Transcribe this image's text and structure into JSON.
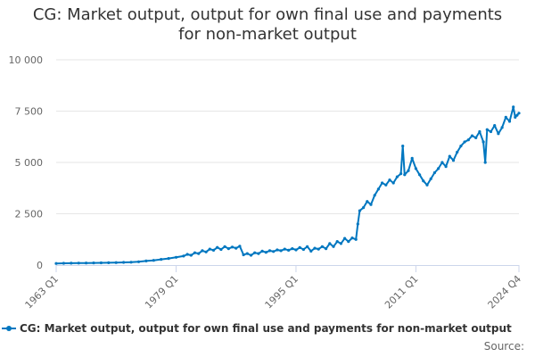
{
  "chart_data": {
    "type": "line",
    "title_lines": [
      "CG: Market output, output for own final use and payments",
      "for non-market output"
    ],
    "x_tick_labels": [
      "1963 Q1",
      "1979 Q1",
      "1995 Q1",
      "2011 Q1",
      "2024 Q4"
    ],
    "y_tick_labels": [
      "0",
      "2 500",
      "5 000",
      "7 500",
      "10 000"
    ],
    "y_ticks": [
      0,
      2500,
      5000,
      7500,
      10000
    ],
    "ylim": [
      0,
      10000
    ],
    "x_start_year": 1963,
    "x_end_year": 2024.75,
    "grid": true,
    "legend_position": "bottom",
    "series": [
      {
        "name": "CG: Market output, output for own final use and payments for non-market output",
        "color": "#0077c0",
        "points": [
          [
            1963.0,
            80
          ],
          [
            1964.0,
            85
          ],
          [
            1965.0,
            90
          ],
          [
            1966.0,
            95
          ],
          [
            1967.0,
            100
          ],
          [
            1968.0,
            105
          ],
          [
            1969.0,
            110
          ],
          [
            1970.0,
            115
          ],
          [
            1971.0,
            120
          ],
          [
            1972.0,
            130
          ],
          [
            1973.0,
            140
          ],
          [
            1974.0,
            160
          ],
          [
            1975.0,
            200
          ],
          [
            1976.0,
            230
          ],
          [
            1977.0,
            280
          ],
          [
            1978.0,
            320
          ],
          [
            1979.0,
            380
          ],
          [
            1980.0,
            440
          ],
          [
            1980.5,
            520
          ],
          [
            1981.0,
            480
          ],
          [
            1981.5,
            600
          ],
          [
            1982.0,
            560
          ],
          [
            1982.5,
            700
          ],
          [
            1983.0,
            640
          ],
          [
            1983.5,
            780
          ],
          [
            1984.0,
            720
          ],
          [
            1984.5,
            860
          ],
          [
            1985.0,
            760
          ],
          [
            1985.5,
            900
          ],
          [
            1986.0,
            800
          ],
          [
            1986.5,
            880
          ],
          [
            1987.0,
            820
          ],
          [
            1987.5,
            920
          ],
          [
            1988.0,
            500
          ],
          [
            1988.5,
            560
          ],
          [
            1989.0,
            480
          ],
          [
            1989.5,
            600
          ],
          [
            1990.0,
            560
          ],
          [
            1990.5,
            680
          ],
          [
            1991.0,
            620
          ],
          [
            1991.5,
            700
          ],
          [
            1992.0,
            660
          ],
          [
            1992.5,
            740
          ],
          [
            1993.0,
            700
          ],
          [
            1993.5,
            780
          ],
          [
            1994.0,
            720
          ],
          [
            1994.5,
            800
          ],
          [
            1995.0,
            740
          ],
          [
            1995.5,
            850
          ],
          [
            1996.0,
            760
          ],
          [
            1996.5,
            900
          ],
          [
            1997.0,
            680
          ],
          [
            1997.5,
            820
          ],
          [
            1998.0,
            780
          ],
          [
            1998.5,
            900
          ],
          [
            1999.0,
            800
          ],
          [
            1999.5,
            1050
          ],
          [
            2000.0,
            900
          ],
          [
            2000.5,
            1150
          ],
          [
            2001.0,
            1050
          ],
          [
            2001.5,
            1300
          ],
          [
            2002.0,
            1150
          ],
          [
            2002.5,
            1320
          ],
          [
            2003.0,
            1250
          ],
          [
            2003.25,
            2000
          ],
          [
            2003.5,
            2650
          ],
          [
            2004.0,
            2800
          ],
          [
            2004.5,
            3100
          ],
          [
            2005.0,
            2950
          ],
          [
            2005.5,
            3400
          ],
          [
            2006.0,
            3700
          ],
          [
            2006.5,
            4000
          ],
          [
            2007.0,
            3900
          ],
          [
            2007.5,
            4150
          ],
          [
            2008.0,
            4000
          ],
          [
            2008.5,
            4300
          ],
          [
            2009.0,
            4450
          ],
          [
            2009.25,
            5800
          ],
          [
            2009.5,
            4400
          ],
          [
            2010.0,
            4600
          ],
          [
            2010.5,
            5200
          ],
          [
            2011.0,
            4700
          ],
          [
            2011.5,
            4400
          ],
          [
            2012.0,
            4100
          ],
          [
            2012.5,
            3900
          ],
          [
            2013.0,
            4200
          ],
          [
            2013.5,
            4500
          ],
          [
            2014.0,
            4700
          ],
          [
            2014.5,
            5000
          ],
          [
            2015.0,
            4800
          ],
          [
            2015.5,
            5300
          ],
          [
            2016.0,
            5100
          ],
          [
            2016.5,
            5500
          ],
          [
            2017.0,
            5800
          ],
          [
            2017.5,
            6000
          ],
          [
            2018.0,
            6100
          ],
          [
            2018.5,
            6300
          ],
          [
            2019.0,
            6200
          ],
          [
            2019.5,
            6500
          ],
          [
            2020.0,
            6000
          ],
          [
            2020.25,
            5000
          ],
          [
            2020.5,
            6600
          ],
          [
            2021.0,
            6500
          ],
          [
            2021.5,
            6800
          ],
          [
            2022.0,
            6400
          ],
          [
            2022.5,
            6700
          ],
          [
            2023.0,
            7200
          ],
          [
            2023.5,
            7000
          ],
          [
            2024.0,
            7700
          ],
          [
            2024.25,
            7200
          ],
          [
            2024.5,
            7300
          ],
          [
            2024.75,
            7400
          ]
        ]
      }
    ]
  },
  "credits": {
    "label": "Source:"
  }
}
